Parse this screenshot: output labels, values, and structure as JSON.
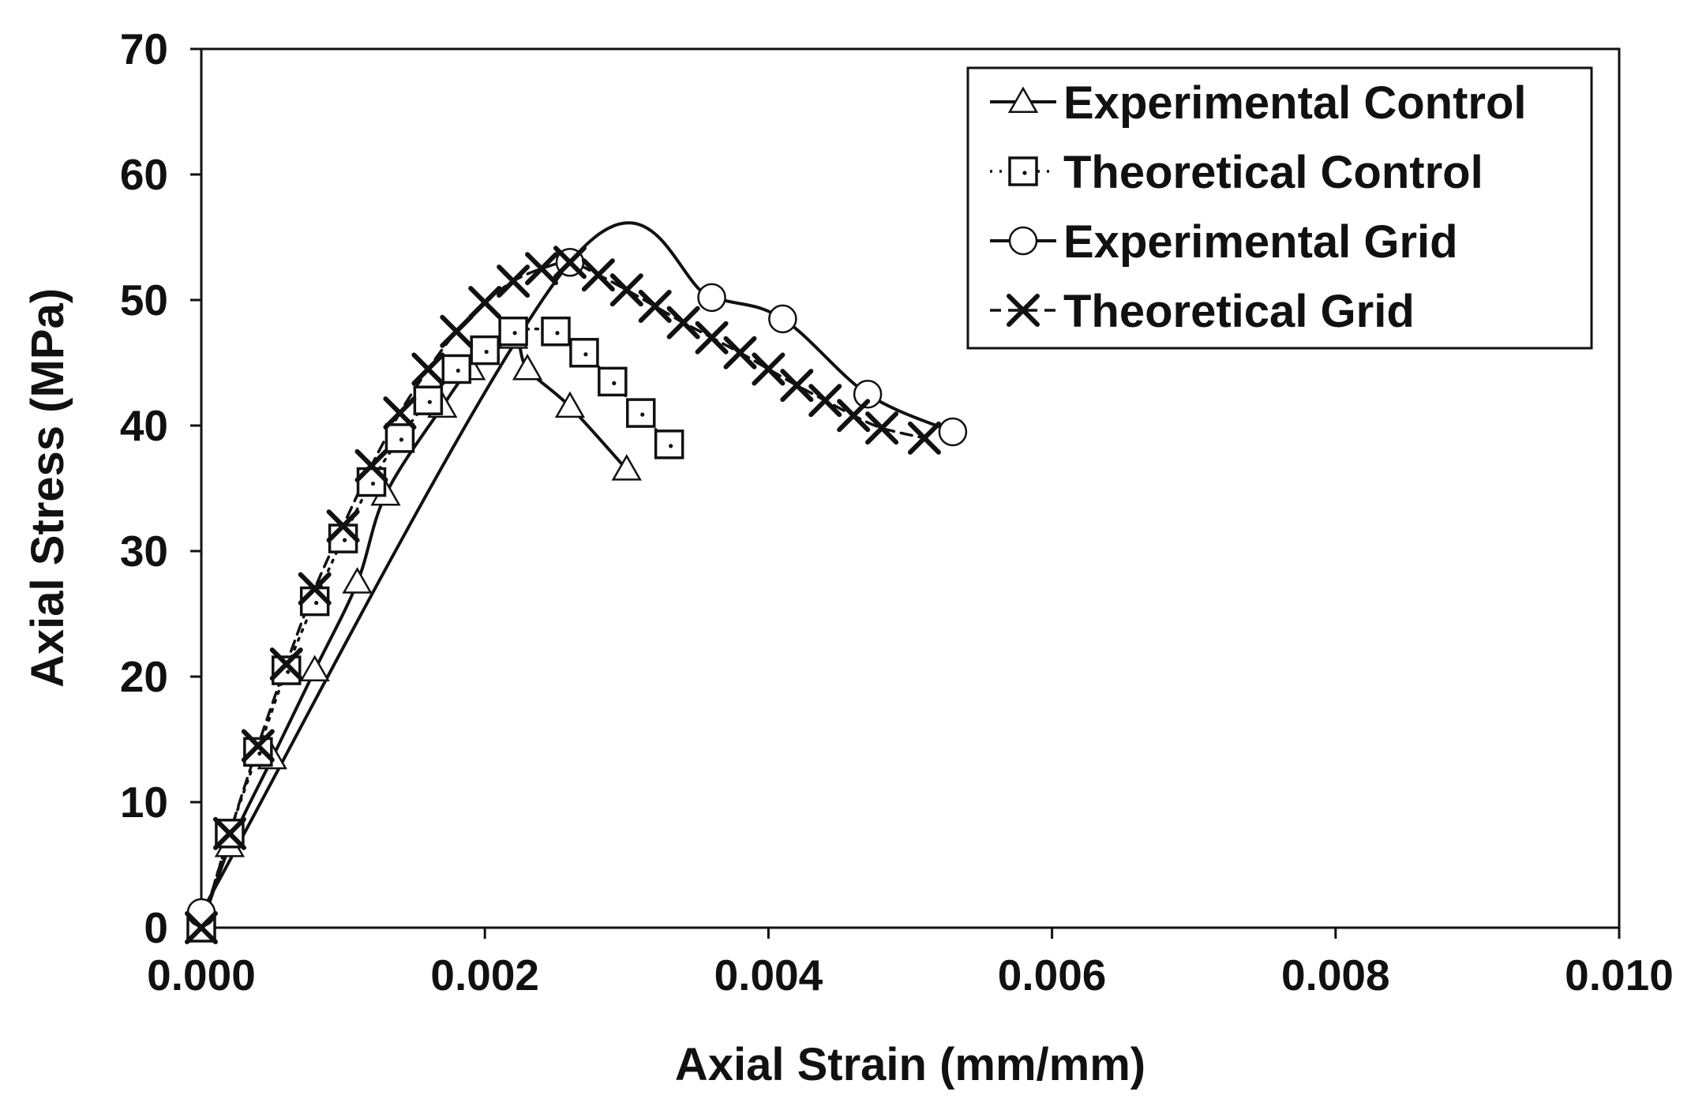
{
  "chart_data": {
    "type": "line",
    "title": "",
    "xlabel": "Axial Strain (mm/mm)",
    "ylabel": "Axial Stress (MPa)",
    "xlim": [
      0,
      0.01
    ],
    "ylim": [
      0,
      70
    ],
    "x_ticks": [
      0,
      0.002,
      0.004,
      0.006,
      0.008,
      0.01
    ],
    "x_tick_labels": [
      "0.000",
      "0.002",
      "0.004",
      "0.006",
      "0.008",
      "0.010"
    ],
    "y_ticks": [
      0,
      10,
      20,
      30,
      40,
      50,
      60,
      70
    ],
    "y_tick_labels": [
      "0",
      "10",
      "20",
      "30",
      "40",
      "50",
      "60",
      "70"
    ],
    "grid": false,
    "legend_position": "top-right",
    "series": [
      {
        "name": "Experimental Control",
        "marker": "triangle",
        "line_style": "solid",
        "color": "#111111",
        "points": [
          [
            0,
            0
          ],
          [
            0.0002,
            6.5
          ],
          [
            0.0005,
            13.5
          ],
          [
            0.0008,
            20.5
          ],
          [
            0.0011,
            27.5
          ],
          [
            0.0013,
            34.5
          ],
          [
            0.0017,
            41.5
          ],
          [
            0.0019,
            44.5
          ],
          [
            0.0022,
            47
          ],
          [
            0.0023,
            44.5
          ],
          [
            0.0026,
            41.5
          ],
          [
            0.003,
            36.5
          ]
        ]
      },
      {
        "name": "Theoretical Control",
        "marker": "square",
        "line_style": "dotted",
        "color": "#111111",
        "points": [
          [
            0,
            0
          ],
          [
            0.0002,
            7.5
          ],
          [
            0.0004,
            14
          ],
          [
            0.0006,
            20.5
          ],
          [
            0.0008,
            26
          ],
          [
            0.001,
            31
          ],
          [
            0.0012,
            35.5
          ],
          [
            0.0014,
            39
          ],
          [
            0.0016,
            42
          ],
          [
            0.0018,
            44.5
          ],
          [
            0.002,
            46
          ],
          [
            0.0022,
            47.5
          ],
          [
            0.0025,
            47.5
          ],
          [
            0.0027,
            45.8
          ],
          [
            0.0029,
            43.5
          ],
          [
            0.0031,
            41
          ],
          [
            0.0033,
            38.5
          ]
        ]
      },
      {
        "name": "Experimental Grid",
        "marker": "circle",
        "line_style": "solid",
        "color": "#111111",
        "points": [
          [
            0,
            1.2
          ],
          [
            0.0026,
            53
          ],
          [
            0.0036,
            50.2
          ],
          [
            0.0041,
            48.5
          ],
          [
            0.0047,
            42.5
          ],
          [
            0.0053,
            39.5
          ]
        ]
      },
      {
        "name": "Theoretical Grid",
        "marker": "x",
        "line_style": "dashed",
        "color": "#111111",
        "points": [
          [
            0,
            0
          ],
          [
            0.0002,
            7.5
          ],
          [
            0.0004,
            14.5
          ],
          [
            0.0006,
            21
          ],
          [
            0.0008,
            27
          ],
          [
            0.001,
            32
          ],
          [
            0.0012,
            36.8
          ],
          [
            0.0014,
            41
          ],
          [
            0.0016,
            44.5
          ],
          [
            0.0018,
            47.5
          ],
          [
            0.002,
            49.8
          ],
          [
            0.0022,
            51.5
          ],
          [
            0.0024,
            52.5
          ],
          [
            0.0026,
            53
          ],
          [
            0.0028,
            52
          ],
          [
            0.003,
            50.8
          ],
          [
            0.0032,
            49.5
          ],
          [
            0.0034,
            48.2
          ],
          [
            0.0036,
            47
          ],
          [
            0.0038,
            45.8
          ],
          [
            0.004,
            44.5
          ],
          [
            0.0042,
            43.2
          ],
          [
            0.0044,
            42
          ],
          [
            0.0046,
            40.8
          ],
          [
            0.0048,
            39.8
          ],
          [
            0.0051,
            39
          ]
        ]
      }
    ]
  }
}
